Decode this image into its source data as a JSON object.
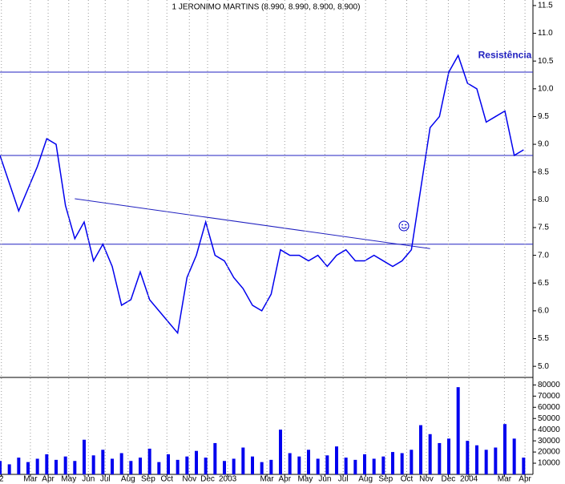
{
  "chart_data": [
    {
      "type": "line",
      "title": "1 JERONIMO MARTINS (8.990, 8.990, 8.900, 8.900)",
      "x": [
        0,
        2,
        4,
        6,
        8,
        10,
        12,
        14,
        16,
        18,
        20,
        22,
        24,
        26,
        28,
        30,
        32,
        34,
        36,
        38,
        40,
        42,
        44,
        46,
        48,
        50,
        52,
        54,
        56,
        58,
        60,
        62,
        64,
        66,
        68,
        70,
        72,
        74,
        76,
        78,
        80,
        82,
        84,
        86,
        88,
        90,
        92,
        94,
        96,
        98,
        100,
        102,
        104,
        106,
        108,
        110,
        112
      ],
      "series": [
        {
          "name": "JERONIMO MARTINS",
          "color": "#0000ee",
          "values": [
            8.8,
            8.3,
            7.8,
            8.2,
            8.6,
            9.1,
            9.0,
            7.9,
            7.3,
            7.6,
            6.9,
            7.2,
            6.8,
            6.1,
            6.2,
            6.7,
            6.2,
            6.0,
            5.8,
            5.6,
            6.6,
            7.0,
            7.6,
            7.0,
            6.9,
            6.6,
            6.4,
            6.1,
            6.0,
            6.3,
            7.1,
            7.0,
            7.0,
            6.9,
            7.0,
            6.8,
            7.0,
            7.1,
            6.9,
            6.9,
            7.0,
            6.9,
            6.8,
            6.9,
            7.1,
            8.2,
            9.3,
            9.5,
            10.3,
            10.6,
            10.1,
            10.0,
            9.4,
            9.5,
            9.6,
            8.8,
            8.9
          ]
        }
      ],
      "xlim": [
        0,
        114
      ],
      "ylim": [
        4.8,
        11.6
      ],
      "yticks": [
        {
          "value": 5,
          "label": "5.0"
        },
        5.5,
        {
          "value": 6,
          "label": "6.0"
        },
        6.5,
        {
          "value": 7,
          "label": "7.0"
        },
        7.5,
        {
          "value": 8,
          "label": "8.0"
        },
        8.5,
        {
          "value": 9,
          "label": "9.0"
        },
        9.5,
        {
          "value": 10,
          "label": "10.0"
        },
        10.5,
        {
          "value": 11,
          "label": "11.0"
        },
        11.5
      ],
      "hlines": [
        10.3,
        8.8,
        7.2
      ],
      "trendline": {
        "x": [
          16,
          92
        ],
        "y": [
          8.02,
          7.12
        ]
      },
      "annotation": {
        "text": "Resistência",
        "x": 108,
        "y": 10.6
      }
    },
    {
      "type": "bar",
      "x": [
        0,
        2,
        4,
        6,
        8,
        10,
        12,
        14,
        16,
        18,
        20,
        22,
        24,
        26,
        28,
        30,
        32,
        34,
        36,
        38,
        40,
        42,
        44,
        46,
        48,
        50,
        52,
        54,
        56,
        58,
        60,
        62,
        64,
        66,
        68,
        70,
        72,
        74,
        76,
        78,
        80,
        82,
        84,
        86,
        88,
        90,
        92,
        94,
        96,
        98,
        100,
        102,
        104,
        106,
        108,
        110,
        112
      ],
      "color": "#0000ee",
      "values": [
        12000,
        9000,
        15000,
        11000,
        14000,
        18000,
        13000,
        16000,
        12000,
        31000,
        17000,
        22000,
        14000,
        19000,
        12000,
        15000,
        23000,
        11000,
        18000,
        13000,
        16000,
        21000,
        15000,
        28000,
        12000,
        14000,
        24000,
        16000,
        11000,
        13000,
        40000,
        19000,
        16000,
        22000,
        14000,
        17000,
        25000,
        15000,
        13000,
        18000,
        14000,
        16000,
        20000,
        19000,
        22000,
        44000,
        36000,
        28000,
        32000,
        78000,
        30000,
        26000,
        22000,
        24000,
        45000,
        32000,
        15000
      ],
      "xlim": [
        0,
        114
      ],
      "ylim": [
        0,
        86000
      ],
      "yticks": [
        10000,
        20000,
        30000,
        40000,
        50000,
        60000,
        70000,
        80000
      ],
      "xticks": [
        {
          "value": 0.3,
          "label": "2"
        },
        {
          "value": 6.5,
          "label": "Mar"
        },
        {
          "value": 10.3,
          "label": "Apr"
        },
        {
          "value": 14.7,
          "label": "May"
        },
        {
          "value": 18.9,
          "label": "Jun"
        },
        {
          "value": 22.5,
          "label": "Jul"
        },
        {
          "value": 27.4,
          "label": "Aug"
        },
        {
          "value": 31.7,
          "label": "Sep"
        },
        {
          "value": 35.7,
          "label": "Oct"
        },
        {
          "value": 40.5,
          "label": "Nov"
        },
        {
          "value": 44.4,
          "label": "Dec"
        },
        {
          "value": 48.7,
          "label": "2003"
        },
        {
          "value": 57.1,
          "label": "Mar"
        },
        {
          "value": 60.9,
          "label": "Apr"
        },
        {
          "value": 65.3,
          "label": "May"
        },
        {
          "value": 69.5,
          "label": "Jun"
        },
        {
          "value": 73.4,
          "label": "Jul"
        },
        {
          "value": 78.2,
          "label": "Aug"
        },
        {
          "value": 82.5,
          "label": "Sep"
        },
        {
          "value": 87,
          "label": "Oct"
        },
        {
          "value": 91.2,
          "label": "Nov"
        },
        {
          "value": 95.9,
          "label": "Dec"
        },
        {
          "value": 100.3,
          "label": "2004"
        },
        {
          "value": 107.9,
          "label": "Mar"
        },
        {
          "value": 112.3,
          "label": "Apr"
        }
      ],
      "grid": true
    }
  ]
}
